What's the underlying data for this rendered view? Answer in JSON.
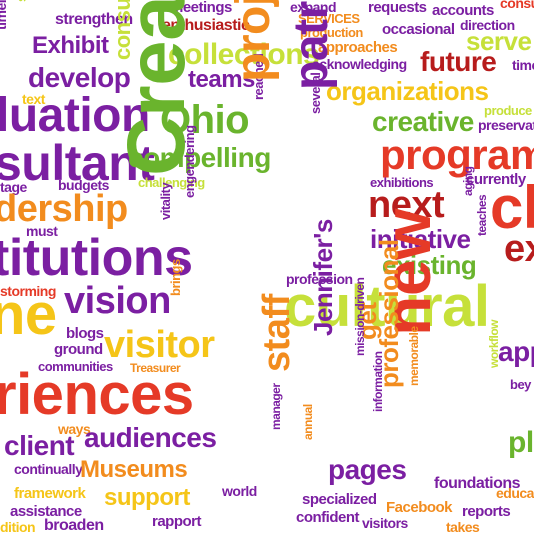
{
  "palette": {
    "purple": "#7b1fa2",
    "green": "#6ab42d",
    "lime": "#c6e03a",
    "orange": "#f28c1e",
    "red": "#e53a27",
    "yellow": "#f5c518",
    "darkred": "#b71c1c"
  },
  "words": [
    "timelines",
    "supporters",
    "strengthen",
    "meetings",
    "enthusiastic",
    "interaction",
    "expand",
    "SERVICES",
    "requests",
    "accounts",
    "direction",
    "consulting",
    "Exhibit",
    "collections",
    "production",
    "occasional",
    "serve",
    "approaches",
    "acknowledging",
    "future",
    "time",
    "develop",
    "teams",
    "organizations",
    "text",
    "luation",
    "Ohio",
    "consulting",
    "reached",
    "several",
    "creative",
    "preservation",
    "produce",
    "sultant",
    "compelling",
    "project",
    "patrons",
    "programs",
    "tage",
    "budgets",
    "challenging",
    "exhibitions",
    "currently",
    "dership",
    "next",
    "ch",
    "must",
    "initiative",
    "aging",
    "titutions",
    "vitality",
    "engendering",
    "Creative",
    "existing",
    "teaches",
    "profession",
    "storming",
    "vision",
    "brings",
    "cultural",
    "blogs",
    "ground",
    "visitor",
    "communities",
    "Treasurer",
    "staff",
    "Jennifer's",
    "get",
    "mission-driven",
    "new",
    "app",
    "riences",
    "workflow",
    "ways",
    "client",
    "audiences",
    "information",
    "memorable",
    "professional",
    "pla",
    "continually",
    "Museums",
    "pages",
    "manager",
    "annual",
    "foundations",
    "educators",
    "framework",
    "support",
    "world",
    "specialized",
    "Facebook",
    "reports",
    "assistance",
    "broaden",
    "rapport",
    "confident",
    "visitors",
    "takes",
    "dition",
    "ex",
    "bey",
    "ne"
  ]
}
